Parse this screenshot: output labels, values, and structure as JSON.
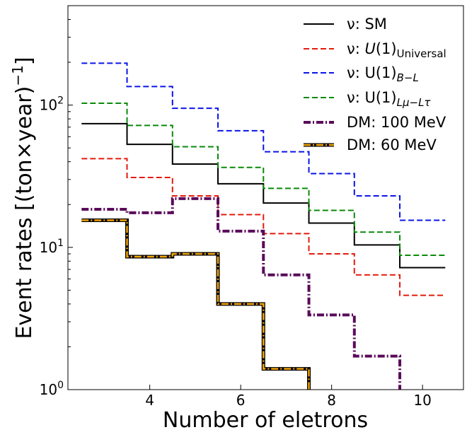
{
  "chart_data": {
    "type": "line",
    "subtype": "step",
    "xlabel": "Number of eletrons",
    "ylabel": "Event rates [(ton×year)",
    "ylabel_sup": "−1",
    "ylabel_close": "]",
    "xlim": [
      2.2,
      10.9
    ],
    "ylim": [
      1,
      500
    ],
    "yscale": "log",
    "x_ticks": [
      4,
      6,
      8,
      10
    ],
    "y_ticks": [
      {
        "value": 1,
        "base": "10",
        "exp": "0"
      },
      {
        "value": 10,
        "base": "10",
        "exp": "1"
      },
      {
        "value": 100,
        "base": "10",
        "exp": "2"
      }
    ],
    "grid": false,
    "legend_position": "top-right",
    "x_edges": [
      2.5,
      3.5,
      4.5,
      5.5,
      6.5,
      7.5,
      8.5,
      9.5,
      10.5
    ],
    "series": [
      {
        "name": "ν: SM",
        "legend_parts": [
          {
            "t": "ν: SM"
          }
        ],
        "color": "#000000",
        "style": "solid",
        "values": [
          74,
          53,
          38.5,
          28,
          20.5,
          14.8,
          10.4,
          7.2
        ]
      },
      {
        "name": "ν: U(1)Universal",
        "legend_parts": [
          {
            "t": "ν: "
          },
          {
            "t": "U",
            "italic": true
          },
          {
            "t": "(1)"
          },
          {
            "t": "Universal",
            "sub": true
          }
        ],
        "color": "#e41a0c",
        "style": "dashed",
        "values": [
          42,
          31,
          23,
          17,
          12.5,
          9,
          6.4,
          4.6
        ]
      },
      {
        "name": "ν: U(1)B−L",
        "legend_parts": [
          {
            "t": "ν: U(1)"
          },
          {
            "t": "B−L",
            "sub": true,
            "italic": true
          }
        ],
        "color": "#0a14e6",
        "style": "dashed",
        "values": [
          197,
          135,
          95,
          66,
          47,
          33,
          23,
          15.5
        ]
      },
      {
        "name": "ν: U(1)Lμ−Lτ",
        "legend_parts": [
          {
            "t": "ν: U(1)"
          },
          {
            "t": "Lμ−Lτ",
            "sub": true,
            "italic": true
          }
        ],
        "color": "#0a8a0a",
        "style": "dashed",
        "values": [
          103,
          72,
          51,
          36.5,
          26,
          18.2,
          12.8,
          8.8
        ]
      },
      {
        "name": "DM: 100 MeV",
        "legend_parts": [
          {
            "t": "DM: 100 MeV"
          }
        ],
        "color": "#5a0a5a",
        "style": "dashdot-thick",
        "values": [
          18.5,
          17.5,
          22,
          13,
          6.4,
          3.35,
          1.72,
          0.5
        ]
      },
      {
        "name": "DM: 60 MeV",
        "legend_parts": [
          {
            "t": "DM: 60 MeV"
          }
        ],
        "color": "#f5a500",
        "style": "dashdot-outlined",
        "values": [
          15.5,
          8.6,
          9,
          4,
          1.4,
          0.5,
          null,
          null
        ]
      }
    ]
  }
}
